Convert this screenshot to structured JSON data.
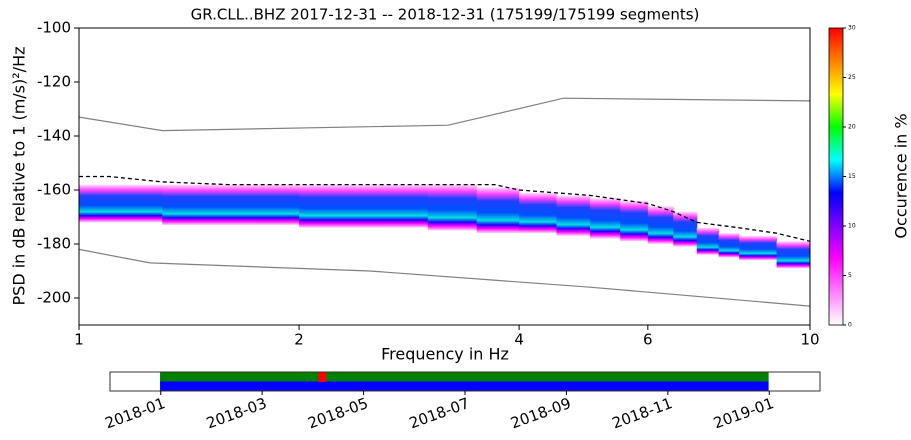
{
  "chart_data": {
    "type": "ppsd",
    "title": "GR.CLL..BHZ 2017-12-31 -- 2018-12-31 (175199/175199 segments)",
    "xlabel": "Frequency in Hz",
    "ylabel": "PSD in dB relative to 1 (m/s)²/Hz",
    "xlog": true,
    "xlim": [
      1,
      10
    ],
    "xticks": [
      1,
      2,
      4,
      6,
      10
    ],
    "ylim": [
      -210,
      -100
    ],
    "yticks": [
      -200,
      -180,
      -160,
      -140,
      -120,
      -100
    ],
    "psd_band": {
      "bins": [
        1,
        1.3,
        1.6,
        2,
        2.5,
        3,
        3.5,
        4,
        4.5,
        5,
        5.5,
        6,
        6.5,
        7,
        7.5,
        8,
        9,
        10
      ],
      "upper": [
        -158,
        -158,
        -158,
        -158,
        -158,
        -158,
        -159,
        -161,
        -162,
        -163,
        -164,
        -166,
        -168,
        -174,
        -176,
        -177,
        -179
      ],
      "lower": [
        -172,
        -173,
        -173,
        -174,
        -174,
        -175,
        -176,
        -176,
        -177,
        -178,
        -179,
        -180,
        -181,
        -184,
        -185,
        -186,
        -189
      ]
    },
    "series": [
      {
        "name": "NHNM",
        "color": "#808080",
        "dashed": false,
        "x": [
          1,
          1.3,
          3.2,
          4.6,
          10
        ],
        "values": [
          -133,
          -138,
          -136,
          -126,
          -127
        ]
      },
      {
        "name": "NLNM",
        "color": "#808080",
        "dashed": false,
        "x": [
          1,
          1.25,
          2.5,
          5,
          10
        ],
        "values": [
          -182,
          -187,
          -190,
          -196,
          -203
        ]
      },
      {
        "name": "percentile",
        "color": "#000000",
        "dashed": true,
        "x": [
          1,
          1.1,
          1.3,
          1.6,
          2,
          3,
          3.7,
          4,
          5,
          6,
          6.5,
          7,
          8,
          9,
          10
        ],
        "values": [
          -155,
          -155,
          -157,
          -158,
          -158,
          -158,
          -158,
          -160,
          -162,
          -165,
          -168,
          -172,
          -174,
          -176,
          -179
        ]
      }
    ],
    "colorbar": {
      "label": "Occurence in %",
      "lim": [
        0,
        30
      ],
      "ticks": [
        0,
        5,
        10,
        15,
        20,
        25,
        30
      ],
      "colors": [
        "#ffffff",
        "#ff80ff",
        "#ff00ff",
        "#8000ff",
        "#0000ff",
        "#00ffff",
        "#00ff00",
        "#ffff00",
        "#ff8000",
        "#ff0000"
      ]
    },
    "timeline": {
      "xlim": [
        "2017-12",
        "2019-02"
      ],
      "xticks": [
        "2018-01",
        "2018-03",
        "2018-05",
        "2018-07",
        "2018-09",
        "2018-11",
        "2019-01"
      ],
      "coverage": [
        "2017-12-31",
        "2018-12-31"
      ]
    }
  }
}
